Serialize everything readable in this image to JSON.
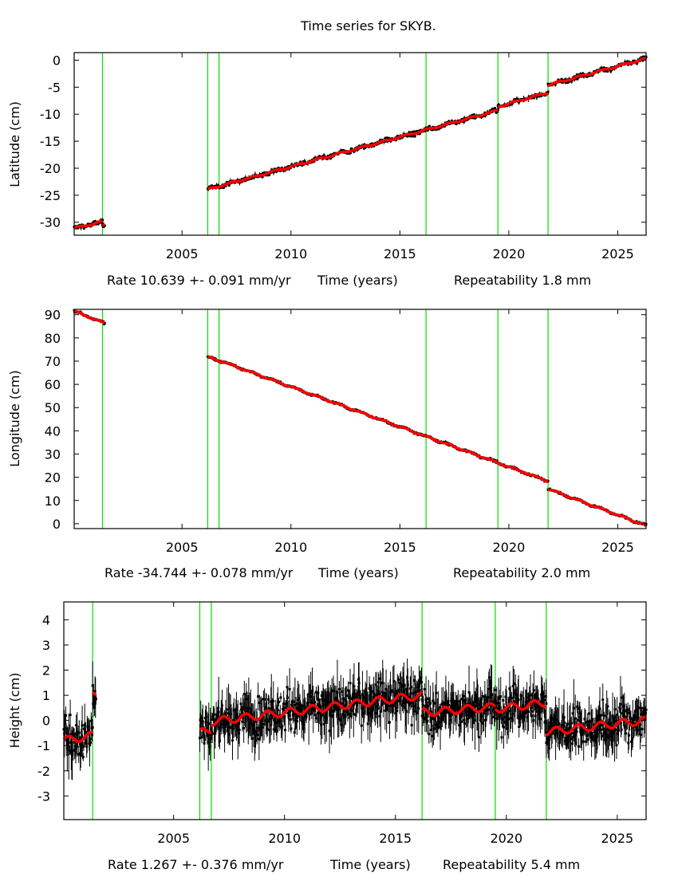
{
  "title": "Time series for SKYB.",
  "colors": {
    "data": "#000000",
    "model": "#ff0000",
    "offset_lines": "#00e000",
    "frame": "#000000"
  },
  "chart_data": [
    {
      "type": "scatter",
      "ylabel": "Latitude (cm)",
      "xlabel": "Time (years)",
      "rate_text": "Rate 10.639 +- 0.091 mm/yr",
      "repeatability_text": "Repeatability 1.8 mm",
      "xlim": [
        2000.05,
        2026.3
      ],
      "ylim": [
        -32.4,
        1.4
      ],
      "xticks": [
        2005,
        2010,
        2015,
        2020,
        2025
      ],
      "xtick_labels": [
        "2005",
        "2010",
        "2015",
        "2020",
        "2025"
      ],
      "yticks": [
        0,
        -5,
        -10,
        -15,
        -20,
        -25,
        -30
      ],
      "ytick_labels": [
        "0",
        "-5",
        "-10",
        "-15",
        "-20",
        "-25",
        "-30"
      ],
      "offset_epochs": [
        2001.35,
        2006.18,
        2006.7,
        2016.2,
        2019.5,
        2021.8
      ],
      "noise": 0.35,
      "seasonal_amplitude": 0.15,
      "segments": [
        {
          "x": [
            2000.05,
            2001.35
          ],
          "y": [
            -31.1,
            -29.9
          ]
        },
        {
          "x": [
            2001.35,
            2001.45
          ],
          "y": [
            -30.6,
            -30.6
          ]
        },
        {
          "x": [
            2006.18,
            2016.2
          ],
          "y": [
            -23.9,
            -12.9
          ]
        },
        {
          "x": [
            2016.2,
            2019.5
          ],
          "y": [
            -12.9,
            -9.3
          ]
        },
        {
          "x": [
            2019.5,
            2021.8
          ],
          "y": [
            -8.6,
            -6.0
          ]
        },
        {
          "x": [
            2021.8,
            2026.3
          ],
          "y": [
            -4.6,
            0.3
          ]
        }
      ]
    },
    {
      "type": "scatter",
      "ylabel": "Longitude (cm)",
      "xlabel": "Time (years)",
      "rate_text": "Rate -34.744 +- 0.078 mm/yr",
      "repeatability_text": "Repeatability 2.0 mm",
      "xlim": [
        2000.05,
        2026.3
      ],
      "ylim": [
        -2.1,
        92.3
      ],
      "xticks": [
        2005,
        2010,
        2015,
        2020,
        2025
      ],
      "xtick_labels": [
        "2005",
        "2010",
        "2015",
        "2020",
        "2025"
      ],
      "yticks": [
        90,
        80,
        70,
        60,
        50,
        40,
        30,
        20,
        10,
        0
      ],
      "ytick_labels": [
        "90",
        "80",
        "70",
        "60",
        "50",
        "40",
        "30",
        "20",
        "10",
        "0"
      ],
      "offset_epochs": [
        2001.35,
        2006.18,
        2006.7,
        2016.2,
        2019.5,
        2021.8
      ],
      "noise": 0.4,
      "seasonal_amplitude": 0.3,
      "segments": [
        {
          "x": [
            2000.05,
            2001.45
          ],
          "y": [
            91.5,
            86.3
          ]
        },
        {
          "x": [
            2006.18,
            2006.7
          ],
          "y": [
            71.8,
            70.2
          ]
        },
        {
          "x": [
            2006.7,
            2016.2
          ],
          "y": [
            70.3,
            37.6
          ]
        },
        {
          "x": [
            2016.2,
            2021.8
          ],
          "y": [
            37.6,
            18.3
          ]
        },
        {
          "x": [
            2021.8,
            2026.3
          ],
          "y": [
            15.0,
            -0.8
          ]
        }
      ]
    },
    {
      "type": "scatter",
      "ylabel": "Height (cm)",
      "xlabel": "Time (years)",
      "rate_text": "Rate 1.267 +- 0.376 mm/yr",
      "repeatability_text": "Repeatability 5.4 mm",
      "xlim": [
        2000.05,
        2026.3
      ],
      "ylim": [
        -3.94,
        4.71
      ],
      "xticks": [
        2005,
        2010,
        2015,
        2020,
        2025
      ],
      "xtick_labels": [
        "2005",
        "2010",
        "2015",
        "2020",
        "2025"
      ],
      "yticks": [
        4,
        3,
        2,
        1,
        0,
        -1,
        -2,
        -3
      ],
      "ytick_labels": [
        "4",
        "3",
        "2",
        "1",
        "0",
        "-1",
        "-2",
        "-3"
      ],
      "offset_epochs": [
        2001.35,
        2006.18,
        2006.7,
        2016.2,
        2019.5,
        2021.8
      ],
      "noise": 0.75,
      "seasonal_amplitude": 0.15,
      "segments": [
        {
          "x": [
            2000.05,
            2001.35
          ],
          "y": [
            -0.8,
            -0.6
          ]
        },
        {
          "x": [
            2001.35,
            2001.5
          ],
          "y": [
            1.0,
            1.0
          ]
        },
        {
          "x": [
            2006.18,
            2006.7
          ],
          "y": [
            -0.5,
            -0.35
          ]
        },
        {
          "x": [
            2006.7,
            2016.2
          ],
          "y": [
            -0.05,
            1.0
          ]
        },
        {
          "x": [
            2016.2,
            2019.5
          ],
          "y": [
            0.3,
            0.55
          ]
        },
        {
          "x": [
            2019.5,
            2021.8
          ],
          "y": [
            0.45,
            0.7
          ]
        },
        {
          "x": [
            2021.8,
            2026.3
          ],
          "y": [
            -0.45,
            0.0
          ]
        }
      ]
    }
  ]
}
